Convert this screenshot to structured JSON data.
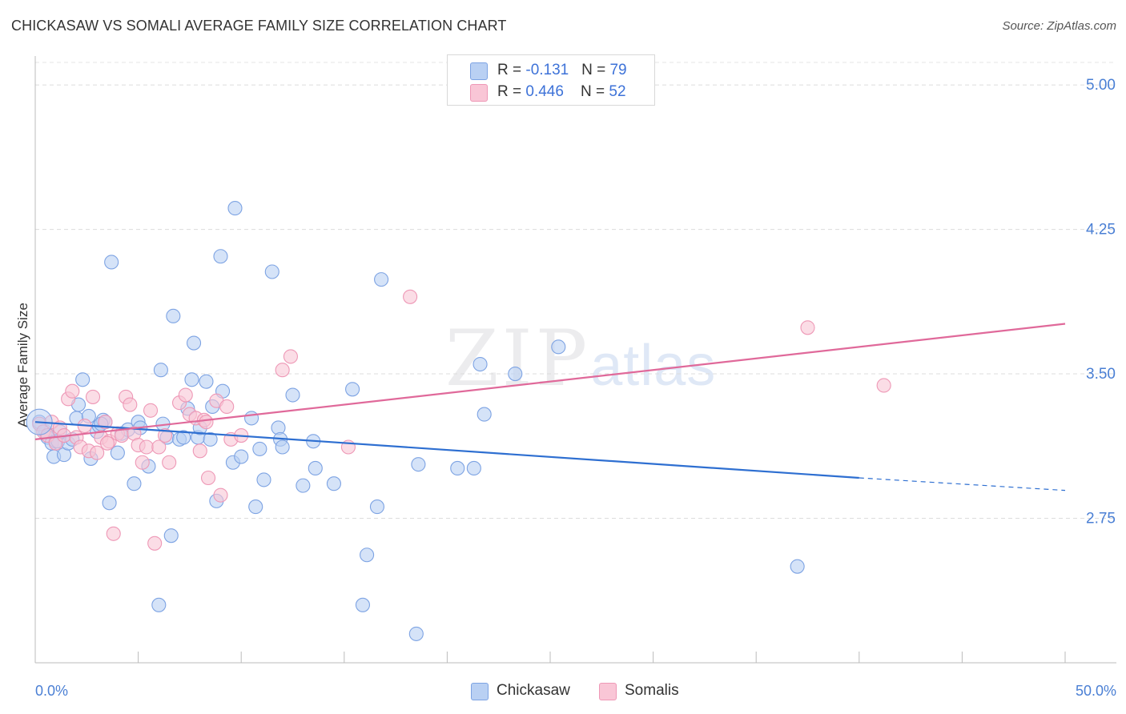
{
  "header": {
    "title": "CHICKASAW VS SOMALI AVERAGE FAMILY SIZE CORRELATION CHART",
    "source": "Source: ZipAtlas.com"
  },
  "watermark": {
    "zip": "ZIP",
    "atlas": "atlas"
  },
  "legend": {
    "rows": [
      {
        "r_label": "R = ",
        "r_value": "-0.131",
        "n_label": "N = ",
        "n_value": "79"
      },
      {
        "r_label": "R = ",
        "r_value": "0.446",
        "n_label": "N = ",
        "n_value": "52"
      }
    ]
  },
  "bottom_legend": {
    "chickasaw": "Chickasaw",
    "somalis": "Somalis"
  },
  "colors": {
    "chickasaw_fill": "#b9d0f3",
    "chickasaw_stroke": "#7da3e3",
    "chickasaw_line": "#2e6fd1",
    "somalis_fill": "#f9c6d6",
    "somalis_stroke": "#ee98b6",
    "somalis_line": "#e0699a",
    "tick_text": "#4a7fd4"
  },
  "chart_data": {
    "type": "scatter",
    "title": "CHICKASAW VS SOMALI AVERAGE FAMILY SIZE CORRELATION CHART",
    "xlabel": "",
    "ylabel": "Average Family Size",
    "xlim": [
      0,
      50
    ],
    "ylim": [
      2.0,
      5.15
    ],
    "x_tick_labels": [
      "0.0%",
      "50.0%"
    ],
    "y_ticks": [
      2.75,
      3.5,
      4.25,
      5.0
    ],
    "y_tick_labels": [
      "2.75",
      "3.50",
      "4.25",
      "5.00"
    ],
    "grid": true,
    "legend_position": "top-center",
    "series": [
      {
        "name": "Chickasaw",
        "r": -0.131,
        "n": 79,
        "trend": {
          "x0": 0,
          "y0": 3.25,
          "x1": 40,
          "y1": 2.96,
          "dashed_to_x": 50,
          "dashed_to_y": 2.895
        },
        "points": [
          [
            0.2,
            3.25
          ],
          [
            0.5,
            3.2
          ],
          [
            0.6,
            3.17
          ],
          [
            0.8,
            3.14
          ],
          [
            0.9,
            3.07
          ],
          [
            1.0,
            3.15
          ],
          [
            1.1,
            3.15
          ],
          [
            1.2,
            3.2
          ],
          [
            1.4,
            3.08
          ],
          [
            1.6,
            3.14
          ],
          [
            1.8,
            3.16
          ],
          [
            2.0,
            3.27
          ],
          [
            2.1,
            3.34
          ],
          [
            2.3,
            3.47
          ],
          [
            2.6,
            3.28
          ],
          [
            2.7,
            3.06
          ],
          [
            3.0,
            3.2
          ],
          [
            3.1,
            3.23
          ],
          [
            3.3,
            3.26
          ],
          [
            3.4,
            3.25
          ],
          [
            3.6,
            2.83
          ],
          [
            3.7,
            4.08
          ],
          [
            4.0,
            3.09
          ],
          [
            4.2,
            3.19
          ],
          [
            4.5,
            3.21
          ],
          [
            4.8,
            2.93
          ],
          [
            5.0,
            3.25
          ],
          [
            5.1,
            3.22
          ],
          [
            5.5,
            3.02
          ],
          [
            6.0,
            2.3
          ],
          [
            6.1,
            3.52
          ],
          [
            6.2,
            3.24
          ],
          [
            6.4,
            3.17
          ],
          [
            6.6,
            2.66
          ],
          [
            6.7,
            3.8
          ],
          [
            7.0,
            3.16
          ],
          [
            7.2,
            3.17
          ],
          [
            7.4,
            3.32
          ],
          [
            7.6,
            3.47
          ],
          [
            7.7,
            3.66
          ],
          [
            7.9,
            3.17
          ],
          [
            8.0,
            3.22
          ],
          [
            8.3,
            3.46
          ],
          [
            8.5,
            3.16
          ],
          [
            8.6,
            3.33
          ],
          [
            8.8,
            2.84
          ],
          [
            9.0,
            4.11
          ],
          [
            9.1,
            3.41
          ],
          [
            9.6,
            3.04
          ],
          [
            9.7,
            4.36
          ],
          [
            10.0,
            3.07
          ],
          [
            10.5,
            3.27
          ],
          [
            10.7,
            2.81
          ],
          [
            10.9,
            3.11
          ],
          [
            11.1,
            2.95
          ],
          [
            11.5,
            4.03
          ],
          [
            11.8,
            3.22
          ],
          [
            11.9,
            3.16
          ],
          [
            12.0,
            3.12
          ],
          [
            12.5,
            3.39
          ],
          [
            13.0,
            2.92
          ],
          [
            13.5,
            3.15
          ],
          [
            13.6,
            3.01
          ],
          [
            14.5,
            2.93
          ],
          [
            15.4,
            3.42
          ],
          [
            15.9,
            2.3
          ],
          [
            16.1,
            2.56
          ],
          [
            16.6,
            2.81
          ],
          [
            16.8,
            3.99
          ],
          [
            18.5,
            2.15
          ],
          [
            18.6,
            3.03
          ],
          [
            20.5,
            3.01
          ],
          [
            21.3,
            3.01
          ],
          [
            21.6,
            3.55
          ],
          [
            21.8,
            3.29
          ],
          [
            23.3,
            3.5
          ],
          [
            25.4,
            3.64
          ],
          [
            37.0,
            2.5
          ],
          [
            3.2,
            3.24
          ]
        ]
      },
      {
        "name": "Somalis",
        "r": 0.446,
        "n": 52,
        "trend": {
          "x0": 0,
          "y0": 3.16,
          "x1": 50,
          "y1": 3.76
        },
        "points": [
          [
            0.2,
            3.24
          ],
          [
            0.4,
            3.2
          ],
          [
            0.6,
            3.18
          ],
          [
            0.8,
            3.25
          ],
          [
            1.0,
            3.14
          ],
          [
            1.2,
            3.22
          ],
          [
            1.4,
            3.18
          ],
          [
            1.6,
            3.37
          ],
          [
            1.8,
            3.41
          ],
          [
            2.0,
            3.17
          ],
          [
            2.2,
            3.12
          ],
          [
            2.4,
            3.23
          ],
          [
            2.6,
            3.1
          ],
          [
            2.8,
            3.38
          ],
          [
            3.0,
            3.09
          ],
          [
            3.2,
            3.17
          ],
          [
            3.4,
            3.25
          ],
          [
            3.6,
            3.15
          ],
          [
            3.8,
            2.67
          ],
          [
            4.0,
            3.19
          ],
          [
            4.2,
            3.18
          ],
          [
            4.4,
            3.38
          ],
          [
            4.6,
            3.34
          ],
          [
            4.8,
            3.19
          ],
          [
            5.0,
            3.13
          ],
          [
            5.2,
            3.04
          ],
          [
            5.4,
            3.12
          ],
          [
            5.6,
            3.31
          ],
          [
            5.8,
            2.62
          ],
          [
            6.0,
            3.12
          ],
          [
            6.3,
            3.18
          ],
          [
            6.5,
            3.04
          ],
          [
            7.0,
            3.35
          ],
          [
            7.3,
            3.39
          ],
          [
            7.5,
            3.29
          ],
          [
            7.8,
            3.27
          ],
          [
            8.0,
            3.1
          ],
          [
            8.2,
            3.26
          ],
          [
            8.4,
            2.96
          ],
          [
            8.8,
            3.36
          ],
          [
            9.0,
            2.87
          ],
          [
            9.3,
            3.33
          ],
          [
            9.5,
            3.16
          ],
          [
            10.0,
            3.18
          ],
          [
            12.0,
            3.52
          ],
          [
            12.4,
            3.59
          ],
          [
            15.2,
            3.12
          ],
          [
            18.2,
            3.9
          ],
          [
            37.5,
            3.74
          ],
          [
            41.2,
            3.44
          ],
          [
            8.3,
            3.25
          ],
          [
            3.5,
            3.14
          ]
        ]
      }
    ]
  }
}
